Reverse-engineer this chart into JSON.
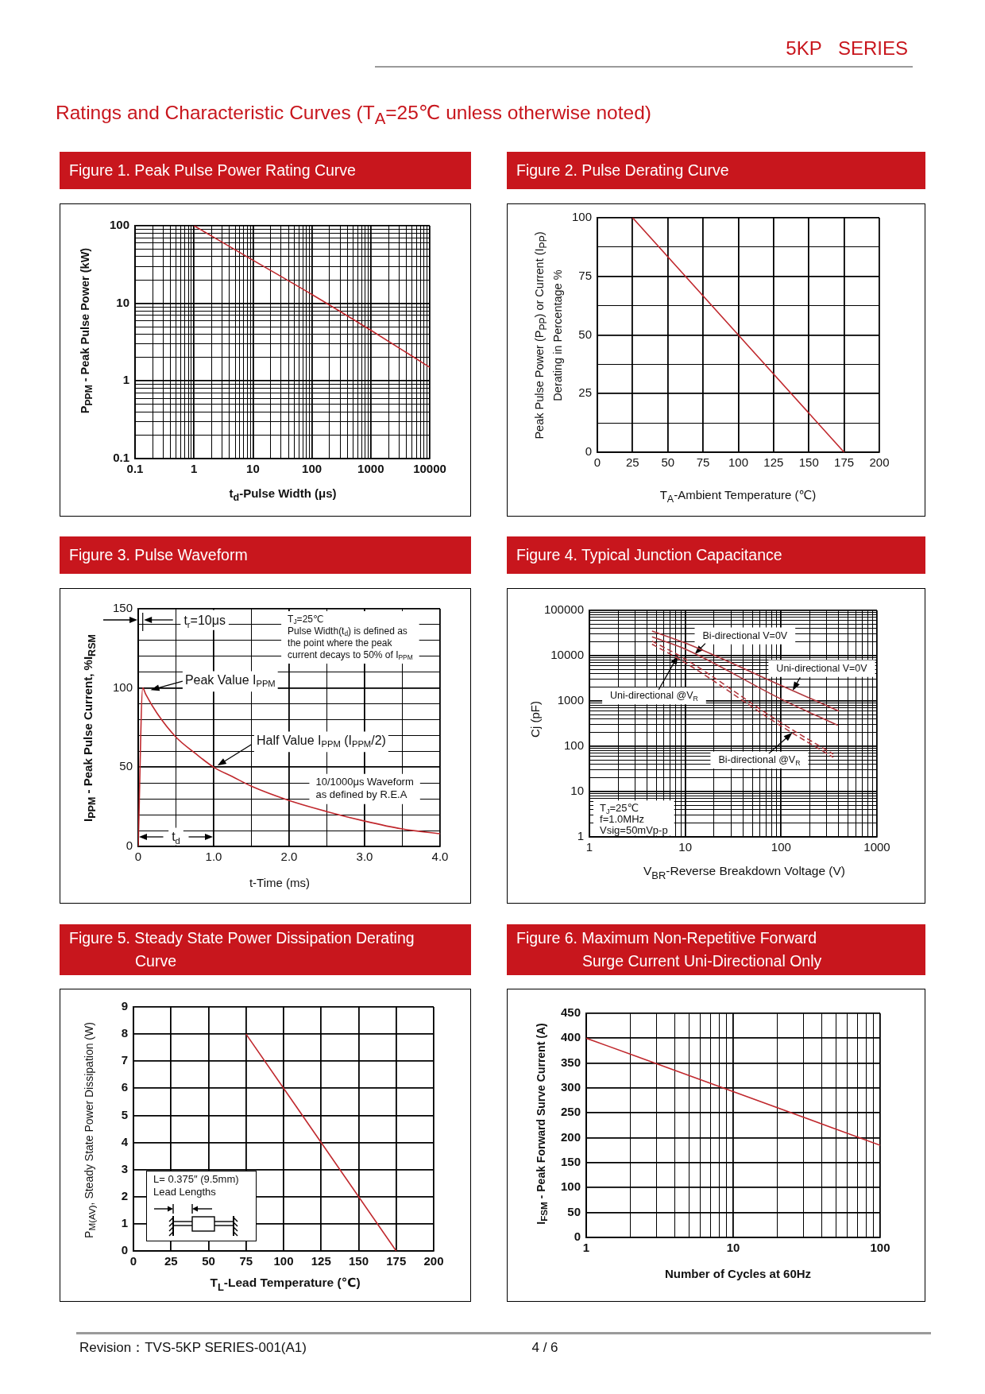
{
  "chart_data": [
    {
      "type": "other",
      "title": "Ratings and Characteristic Curves (T$_{A}$=25℃ unless otherwise noted)",
      "annotations": [
        "5KP SERIES"
      ]
    },
    {
      "type": "line",
      "title": "Figure 1. Peak Pulse Power Rating Curve",
      "xlabel": "t$_{d}$-Pulse Width (μs)",
      "ylabel": "P$_{PPM}$ - Peak Pulse Power (kW)",
      "log": "xy",
      "grid": true,
      "xlim": [
        0.1,
        10000
      ],
      "ylim": [
        0.1,
        100
      ],
      "xticks": [
        0.1,
        {
          "value": 0.2,
          "label": null
        },
        {
          "value": 0.3,
          "label": null
        },
        {
          "value": 0.4,
          "label": null
        },
        {
          "value": 0.5,
          "label": null
        },
        {
          "value": 0.6,
          "label": null
        },
        {
          "value": 0.7,
          "label": null
        },
        {
          "value": 0.8,
          "label": null
        },
        {
          "value": 0.9,
          "label": null
        },
        1,
        {
          "value": 2,
          "label": null
        },
        {
          "value": 3,
          "label": null
        },
        {
          "value": 4,
          "label": null
        },
        {
          "value": 5,
          "label": null
        },
        {
          "value": 6,
          "label": null
        },
        {
          "value": 7,
          "label": null
        },
        {
          "value": 8,
          "label": null
        },
        {
          "value": 9,
          "label": null
        },
        10,
        {
          "value": 20,
          "label": null
        },
        {
          "value": 30,
          "label": null
        },
        {
          "value": 40,
          "label": null
        },
        {
          "value": 50,
          "label": null
        },
        {
          "value": 60,
          "label": null
        },
        {
          "value": 70,
          "label": null
        },
        {
          "value": 80,
          "label": null
        },
        {
          "value": 90,
          "label": null
        },
        100,
        {
          "value": 200,
          "label": null
        },
        {
          "value": 300,
          "label": null
        },
        {
          "value": 400,
          "label": null
        },
        {
          "value": 500,
          "label": null
        },
        {
          "value": 600,
          "label": null
        },
        {
          "value": 700,
          "label": null
        },
        {
          "value": 800,
          "label": null
        },
        {
          "value": 900,
          "label": null
        },
        1000,
        {
          "value": 2000,
          "label": null
        },
        {
          "value": 3000,
          "label": null
        },
        {
          "value": 4000,
          "label": null
        },
        {
          "value": 5000,
          "label": null
        },
        {
          "value": 6000,
          "label": null
        },
        {
          "value": 7000,
          "label": null
        },
        {
          "value": 8000,
          "label": null
        },
        {
          "value": 9000,
          "label": null
        },
        10000
      ],
      "yticks": [
        0.1,
        {
          "value": 0.2,
          "label": null
        },
        {
          "value": 0.3,
          "label": null
        },
        {
          "value": 0.4,
          "label": null
        },
        {
          "value": 0.5,
          "label": null
        },
        {
          "value": 0.6,
          "label": null
        },
        {
          "value": 0.7,
          "label": null
        },
        {
          "value": 0.8,
          "label": null
        },
        {
          "value": 0.9,
          "label": null
        },
        1,
        {
          "value": 2,
          "label": null
        },
        {
          "value": 3,
          "label": null
        },
        {
          "value": 4,
          "label": null
        },
        {
          "value": 5,
          "label": null
        },
        {
          "value": 6,
          "label": null
        },
        {
          "value": 7,
          "label": null
        },
        {
          "value": 8,
          "label": null
        },
        {
          "value": 9,
          "label": null
        },
        10,
        {
          "value": 20,
          "label": null
        },
        {
          "value": 30,
          "label": null
        },
        {
          "value": 40,
          "label": null
        },
        {
          "value": 50,
          "label": null
        },
        {
          "value": 60,
          "label": null
        },
        {
          "value": 70,
          "label": null
        },
        {
          "value": 80,
          "label": null
        },
        {
          "value": 90,
          "label": null
        },
        100
      ],
      "x": [
        1,
        10,
        100,
        1000,
        10000
      ],
      "series": [
        {
          "color": "#c0282d",
          "values": [
            100,
            36,
            13,
            4.5,
            1.5
          ]
        }
      ]
    },
    {
      "type": "line",
      "title": "Figure 2. Pulse Derating Curve",
      "xlabel": "T$_{A}$-Ambient Temperature (℃)",
      "ylabel": "Peak Pulse Power (P$_{PP}$) or Current (I$_{PP}$)\nDerating in Percentage %",
      "grid": true,
      "xlim": [
        0,
        200
      ],
      "ylim": [
        0,
        100
      ],
      "xticks": [
        0,
        25,
        50,
        75,
        100,
        125,
        150,
        175,
        200
      ],
      "yticks": [
        0,
        {
          "value": 12.5,
          "label": null
        },
        25,
        {
          "value": 37.5,
          "label": null
        },
        50,
        {
          "value": 62.5,
          "label": null
        },
        75,
        {
          "value": 87.5,
          "label": null
        },
        100
      ],
      "x": [
        25,
        175
      ],
      "series": [
        {
          "color": "#c0282d",
          "values": [
            100,
            0
          ]
        }
      ]
    },
    {
      "type": "line",
      "title": "Figure 3. Pulse Waveform",
      "xlabel": "t-Time (ms)",
      "ylabel": "I$_{PPM}$ - Peak Pulse Current, %I$_{RSM}$",
      "grid": true,
      "xlim": [
        0,
        4
      ],
      "ylim": [
        0,
        150
      ],
      "xticks": [
        0,
        {
          "value": 0.5,
          "label": null
        },
        {
          "value": 1,
          "label": "1.0"
        },
        {
          "value": 1.5,
          "label": null
        },
        {
          "value": 2,
          "label": "2.0"
        },
        {
          "value": 2.5,
          "label": null
        },
        {
          "value": 3,
          "label": "3.0"
        },
        {
          "value": 3.5,
          "label": null
        },
        {
          "value": 4,
          "label": "4.0"
        }
      ],
      "yticks": [
        0,
        {
          "value": 10,
          "label": null
        },
        {
          "value": 20,
          "label": null
        },
        {
          "value": 30,
          "label": null
        },
        {
          "value": 40,
          "label": null
        },
        50,
        {
          "value": 60,
          "label": null
        },
        {
          "value": 70,
          "label": null
        },
        {
          "value": 80,
          "label": null
        },
        {
          "value": 90,
          "label": null
        },
        100,
        {
          "value": 110,
          "label": null
        },
        {
          "value": 120,
          "label": null
        },
        {
          "value": 130,
          "label": null
        },
        {
          "value": 140,
          "label": null
        },
        150
      ],
      "x": [
        0,
        0.06,
        0.1,
        0.25,
        0.5,
        0.75,
        1,
        1.25,
        1.5,
        2,
        2.5,
        3,
        3.5,
        4
      ],
      "series": [
        {
          "color": "#c0282d",
          "values": [
            0,
            100,
            96,
            84,
            69,
            59,
            50,
            44,
            38,
            29,
            22,
            16,
            11,
            8
          ]
        }
      ],
      "annotations": [
        "t$_{r}$=10μs",
        "T$_{J}$=25℃\nPulse Width(t$_{d}$) is defined as\nthe point where the peak\ncurrent decays to 50% of I$_{PPM}$",
        "Peak Value I$_{PPM}$",
        {
          "text": "Half Value I$_{PPM}$ (I$_{PPM}$/2)",
          "x": 1.05,
          "y": 51
        },
        "10/1000μs Waveform\nas defined by R.E.A",
        "t$_{d}$"
      ]
    },
    {
      "type": "line",
      "title": "Figure 4. Typical Junction Capacitance",
      "xlabel": "V$_{BR}$-Reverse Breakdown Voltage (V)",
      "ylabel": "Cj (pF)",
      "log": "xy",
      "grid": true,
      "xlim": [
        1,
        1000
      ],
      "ylim": [
        1,
        100000
      ],
      "xticks": [
        1,
        {
          "value": 2,
          "label": null
        },
        {
          "value": 3,
          "label": null
        },
        {
          "value": 4,
          "label": null
        },
        {
          "value": 5,
          "label": null
        },
        {
          "value": 6,
          "label": null
        },
        {
          "value": 7,
          "label": null
        },
        {
          "value": 8,
          "label": null
        },
        {
          "value": 9,
          "label": null
        },
        10,
        {
          "value": 20,
          "label": null
        },
        {
          "value": 30,
          "label": null
        },
        {
          "value": 40,
          "label": null
        },
        {
          "value": 50,
          "label": null
        },
        {
          "value": 60,
          "label": null
        },
        {
          "value": 70,
          "label": null
        },
        {
          "value": 80,
          "label": null
        },
        {
          "value": 90,
          "label": null
        },
        100,
        {
          "value": 200,
          "label": null
        },
        {
          "value": 300,
          "label": null
        },
        {
          "value": 400,
          "label": null
        },
        {
          "value": 500,
          "label": null
        },
        {
          "value": 600,
          "label": null
        },
        {
          "value": 700,
          "label": null
        },
        {
          "value": 800,
          "label": null
        },
        {
          "value": 900,
          "label": null
        },
        1000
      ],
      "yticks": [
        1,
        {
          "value": 2,
          "label": null
        },
        {
          "value": 3,
          "label": null
        },
        {
          "value": 4,
          "label": null
        },
        {
          "value": 5,
          "label": null
        },
        {
          "value": 6,
          "label": null
        },
        {
          "value": 7,
          "label": null
        },
        {
          "value": 8,
          "label": null
        },
        {
          "value": 9,
          "label": null
        },
        10,
        {
          "value": 20,
          "label": null
        },
        {
          "value": 30,
          "label": null
        },
        {
          "value": 40,
          "label": null
        },
        {
          "value": 50,
          "label": null
        },
        {
          "value": 60,
          "label": null
        },
        {
          "value": 70,
          "label": null
        },
        {
          "value": 80,
          "label": null
        },
        {
          "value": 90,
          "label": null
        },
        100,
        {
          "value": 200,
          "label": null
        },
        {
          "value": 300,
          "label": null
        },
        {
          "value": 400,
          "label": null
        },
        {
          "value": 500,
          "label": null
        },
        {
          "value": 600,
          "label": null
        },
        {
          "value": 700,
          "label": null
        },
        {
          "value": 800,
          "label": null
        },
        {
          "value": 900,
          "label": null
        },
        1000,
        {
          "value": 2000,
          "label": null
        },
        {
          "value": 3000,
          "label": null
        },
        {
          "value": 4000,
          "label": null
        },
        {
          "value": 5000,
          "label": null
        },
        {
          "value": 6000,
          "label": null
        },
        {
          "value": 7000,
          "label": null
        },
        {
          "value": 8000,
          "label": null
        },
        {
          "value": 9000,
          "label": null
        },
        10000,
        {
          "value": 20000,
          "label": null
        },
        {
          "value": 30000,
          "label": null
        },
        {
          "value": 40000,
          "label": null
        },
        {
          "value": 50000,
          "label": null
        },
        {
          "value": 60000,
          "label": null
        },
        {
          "value": 70000,
          "label": null
        },
        {
          "value": 80000,
          "label": null
        },
        {
          "value": 90000,
          "label": null
        },
        100000
      ],
      "series": [
        {
          "color": "#b0383e",
          "x": [
            4.5,
            10,
            100,
            400
          ],
          "values": [
            35000,
            19000,
            2200,
            600
          ]
        },
        {
          "color": "#b0383e",
          "x": [
            4.5,
            10,
            100,
            390
          ],
          "values": [
            26000,
            14000,
            1100,
            290
          ]
        },
        {
          "color": "#b0383e",
          "line_style": "dashed",
          "x": [
            4.5,
            10,
            100,
            350
          ],
          "values": [
            21000,
            8400,
            330,
            67
          ]
        },
        {
          "color": "#b0383e",
          "line_style": "dashed",
          "x": [
            4.5,
            10,
            100,
            350
          ],
          "values": [
            18000,
            7000,
            280,
            57
          ]
        }
      ],
      "annotations": [
        "T$_{J}$=25℃\nf=1.0MHz\nVsig=50mVp-p",
        "Uni-directional V=0V",
        "Bi-directional V=0V",
        {
          "text": "Uni-directional @V$_{R}$",
          "x": 8.4,
          "y": 10000
        },
        {
          "text": "Bi-directional @V$_{R}$",
          "x": 131,
          "y": 200
        }
      ]
    },
    {
      "type": "line",
      "title": "Figure 5. Steady State Power Dissipation Derating\nCurve",
      "xlabel": "T$_{L}$-Lead Temperature (℃)",
      "ylabel": "P$_{M(AV)}$, Steady State Power Dissipation (W)",
      "grid": true,
      "xlim": [
        0,
        200
      ],
      "ylim": [
        0,
        9
      ],
      "xticks": [
        0,
        25,
        50,
        75,
        100,
        125,
        150,
        175,
        200
      ],
      "yticks": [
        0,
        1,
        2,
        3,
        4,
        5,
        6,
        7,
        8,
        9
      ],
      "x": [
        75,
        175
      ],
      "series": [
        {
          "color": "#c0282d",
          "values": [
            8,
            0
          ]
        }
      ],
      "annotations": [
        "L= 0.375″ (9.5mm)\nLead Lengths"
      ]
    },
    {
      "type": "line",
      "title": "Figure 6. Maximum Non-Repetitive Forward\nSurge Current Uni-Directional Only",
      "xlabel": "Number of Cycles at 60Hz",
      "ylabel": "I$_{FSM}$ - Peak Forward Surve Current (A)",
      "log": "x",
      "grid": true,
      "xlim": [
        1,
        100
      ],
      "ylim": [
        0,
        450
      ],
      "xticks": [
        1,
        {
          "value": 2,
          "label": null
        },
        {
          "value": 3,
          "label": null
        },
        {
          "value": 4,
          "label": null
        },
        {
          "value": 5,
          "label": null
        },
        {
          "value": 6,
          "label": null
        },
        {
          "value": 7,
          "label": null
        },
        {
          "value": 8,
          "label": null
        },
        {
          "value": 9,
          "label": null
        },
        10,
        {
          "value": 20,
          "label": null
        },
        {
          "value": 30,
          "label": null
        },
        {
          "value": 40,
          "label": null
        },
        {
          "value": 50,
          "label": null
        },
        {
          "value": 60,
          "label": null
        },
        {
          "value": 70,
          "label": null
        },
        {
          "value": 80,
          "label": null
        },
        {
          "value": 90,
          "label": null
        },
        100
      ],
      "yticks": [
        0,
        50,
        100,
        150,
        200,
        250,
        300,
        350,
        400,
        450
      ],
      "x": [
        1,
        10,
        100
      ],
      "series": [
        {
          "color": "#c0282d",
          "values": [
            400,
            293,
            185
          ]
        }
      ]
    },
    {
      "type": "other",
      "annotations": [
        "Revision：TVS-5KP SERIES-001(A1)",
        "4 / 6"
      ]
    }
  ]
}
